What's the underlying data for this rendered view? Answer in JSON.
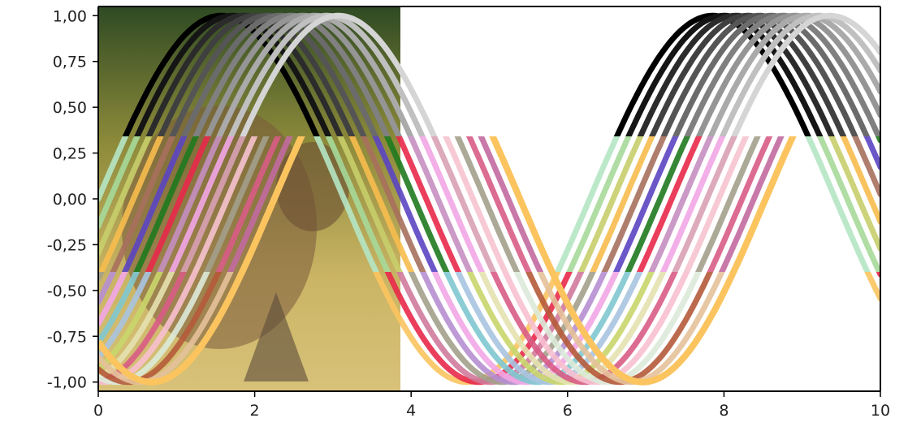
{
  "chart_data": {
    "type": "line",
    "title": "",
    "xlabel": "",
    "ylabel": "",
    "xlim": [
      0,
      10
    ],
    "ylim": [
      -1.05,
      1.05
    ],
    "grid": false,
    "legend": "none",
    "function": "sin",
    "x_ticks": [
      "0",
      "2",
      "4",
      "6",
      "8",
      "10"
    ],
    "y_ticks": [
      "1,00",
      "0,75",
      "0,50",
      "0,25",
      "0,00",
      "-0,25",
      "-0,50",
      "-0,75",
      "-1,00"
    ],
    "background_image": "owl-photo",
    "bands": [
      {
        "name": "grayscale",
        "y_range": [
          0.35,
          1.05
        ],
        "colors": [
          "#000000",
          "#151515",
          "#2b2b2b",
          "#404040",
          "#555555",
          "#6b6b6b",
          "#808080",
          "#959595",
          "#aaaaaa",
          "#c0c0c0",
          "#d5d5d5"
        ]
      },
      {
        "name": "saturated",
        "y_range": [
          -0.42,
          0.35
        ],
        "colors": [
          "#b5e6c4",
          "#a6d99a",
          "#c8ce6b",
          "#f7bc4e",
          "#a7705d",
          "#5b45c2",
          "#1f7a1f",
          "#e8294a",
          "#c58fc0",
          "#f2a6e6",
          "#d8a1b4",
          "#f6c3cf",
          "#a3a08c",
          "#d85c85",
          "#c26aa0"
        ]
      },
      {
        "name": "pastel",
        "y_range": [
          -1.05,
          -0.42
        ],
        "colors": [
          "#fbc45f",
          "#e8294a",
          "#d07a9c",
          "#a3a08c",
          "#b68fd1",
          "#f2a6e6",
          "#7fc8d0",
          "#a8c4e0",
          "#c9d66b",
          "#e4e1b0",
          "#d85c85",
          "#f7c0cf",
          "#dcead9",
          "#b55a3a",
          "#e4c19a"
        ]
      }
    ],
    "series_phase_offsets": [
      0,
      0.15,
      0.3,
      0.45,
      0.6,
      0.75,
      0.9,
      1.05,
      1.2,
      1.35,
      1.5,
      1.65,
      1.8,
      1.95,
      2.1
    ],
    "highlight_series": {
      "color": "#fbc45f",
      "phase_offset": 2.25
    }
  }
}
